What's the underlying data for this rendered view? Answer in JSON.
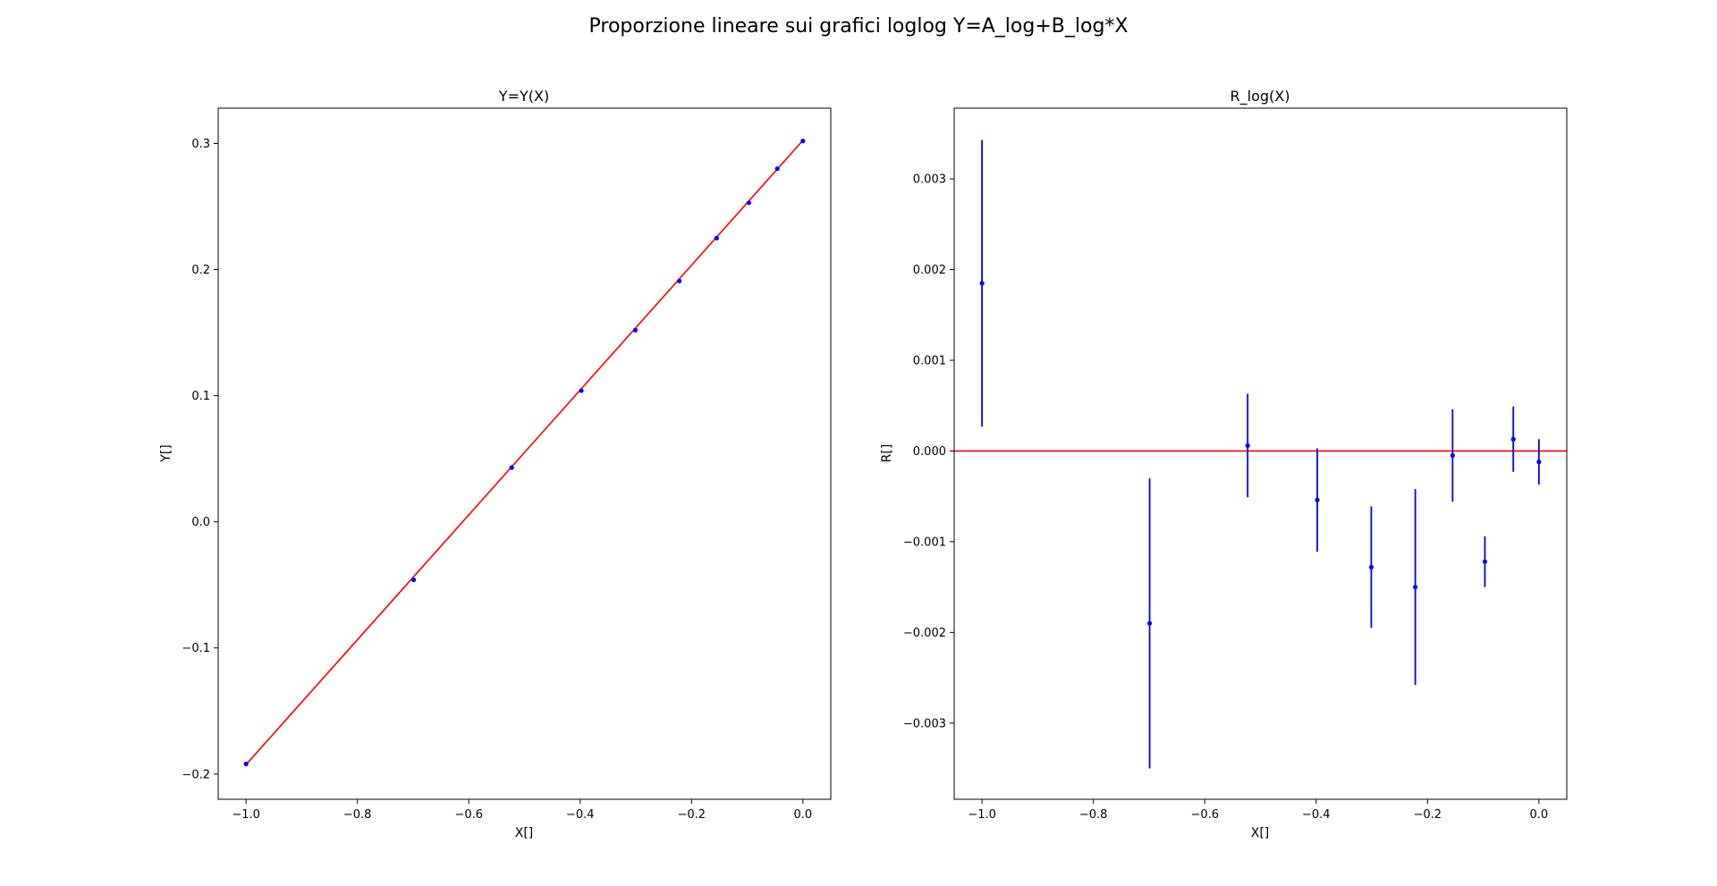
{
  "suptitle": "Proporzione lineare sui grafici loglog Y=A_log+B_log*X",
  "colors": {
    "points": "#0000ff",
    "line": "#ff0000",
    "axes": "#000000"
  },
  "chart_data": [
    {
      "type": "scatter",
      "title": "Y=Y(X)",
      "xlabel": "X[]",
      "ylabel": "Y[]",
      "xlim": [
        -1.05,
        0.05
      ],
      "ylim": [
        -0.22,
        0.328
      ],
      "xticks": [
        -1.0,
        -0.8,
        -0.6,
        -0.4,
        -0.2,
        0.0
      ],
      "xtick_labels": [
        "−1.0",
        "−0.8",
        "−0.6",
        "−0.4",
        "−0.2",
        "0.0"
      ],
      "yticks": [
        -0.2,
        -0.1,
        0.0,
        0.1,
        0.2,
        0.3
      ],
      "ytick_labels": [
        "−0.2",
        "−0.1",
        "0.0",
        "0.1",
        "0.2",
        "0.3"
      ],
      "grid": false,
      "series": [
        {
          "kind": "points",
          "color": "#0000ff",
          "x": [
            -1.0,
            -0.699,
            -0.523,
            -0.398,
            -0.301,
            -0.222,
            -0.155,
            -0.097,
            -0.046,
            0.0
          ],
          "y": [
            -0.192,
            -0.046,
            0.043,
            0.104,
            0.152,
            0.191,
            0.225,
            0.253,
            0.28,
            0.302
          ]
        },
        {
          "kind": "line",
          "color": "#ff0000",
          "x": [
            -1.0,
            0.0
          ],
          "y": [
            -0.1925,
            0.3025
          ]
        }
      ]
    },
    {
      "type": "scatter",
      "title": "R_log(X)",
      "xlabel": "X[]",
      "ylabel": "R[]",
      "xlim": [
        -1.05,
        0.05
      ],
      "ylim": [
        -0.00384,
        0.00378
      ],
      "xticks": [
        -1.0,
        -0.8,
        -0.6,
        -0.4,
        -0.2,
        0.0
      ],
      "xtick_labels": [
        "−1.0",
        "−0.8",
        "−0.6",
        "−0.4",
        "−0.2",
        "0.0"
      ],
      "yticks": [
        -0.003,
        -0.002,
        -0.001,
        0.0,
        0.001,
        0.002,
        0.003
      ],
      "ytick_labels": [
        "−0.003",
        "−0.002",
        "−0.001",
        "0.000",
        "0.001",
        "0.002",
        "0.003"
      ],
      "grid": false,
      "series": [
        {
          "kind": "errorbar",
          "color": "#0000ff",
          "x": [
            -1.0,
            -0.699,
            -0.523,
            -0.398,
            -0.301,
            -0.222,
            -0.155,
            -0.097,
            -0.046,
            0.0
          ],
          "y": [
            0.00185,
            -0.0019,
            6e-05,
            -0.00054,
            -0.00128,
            -0.0015,
            -5e-05,
            -0.00122,
            0.00013,
            -0.00012
          ],
          "yerr": [
            0.00158,
            0.0016,
            0.00057,
            0.00057,
            0.00067,
            0.00108,
            0.00051,
            0.00028,
            0.00036,
            0.00025
          ]
        },
        {
          "kind": "hline",
          "color": "#ff0000",
          "y": 0.0
        }
      ]
    }
  ]
}
